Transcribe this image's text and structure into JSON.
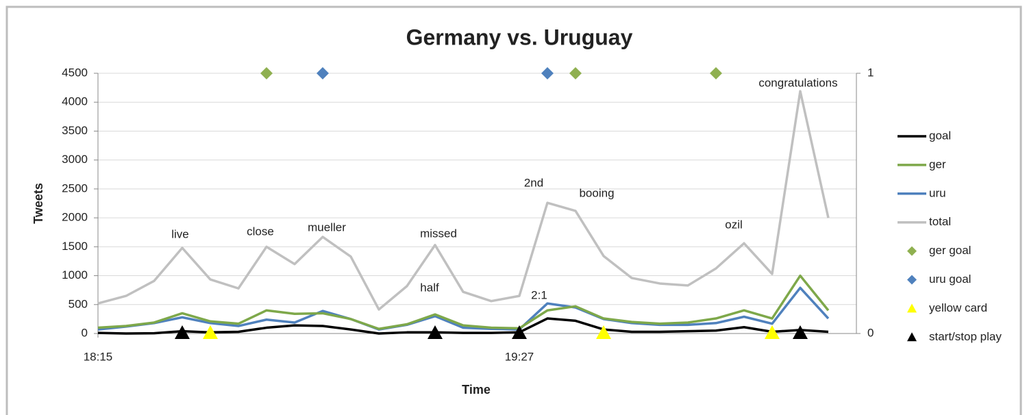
{
  "chart_data": {
    "type": "line",
    "title": "Germany vs. Uruguay",
    "x_label": "Time",
    "y_label": "Tweets",
    "categories": [
      "18:15",
      null,
      null,
      null,
      null,
      null,
      null,
      null,
      null,
      null,
      null,
      null,
      null,
      null,
      null,
      "19:27",
      null,
      null,
      null,
      null,
      null,
      null,
      null,
      null,
      null,
      null,
      null
    ],
    "ylim": [
      0,
      4500
    ],
    "yticks": [
      0,
      500,
      1000,
      1500,
      2000,
      2500,
      3000,
      3500,
      4000,
      4500
    ],
    "y2lim": [
      0,
      1
    ],
    "y2ticks": [
      0,
      1
    ],
    "grid": true,
    "legend": "right",
    "series": [
      {
        "name": "goal",
        "color": "#000000",
        "values": [
          10,
          0,
          5,
          40,
          20,
          30,
          100,
          140,
          130,
          70,
          0,
          20,
          20,
          10,
          10,
          20,
          260,
          220,
          70,
          30,
          30,
          40,
          50,
          110,
          30,
          60,
          30
        ]
      },
      {
        "name": "ger",
        "color": "#7ea84a",
        "values": [
          100,
          130,
          190,
          350,
          210,
          170,
          400,
          340,
          350,
          250,
          80,
          160,
          330,
          140,
          100,
          90,
          400,
          470,
          260,
          200,
          170,
          190,
          260,
          400,
          260,
          1000,
          400
        ]
      },
      {
        "name": "uru",
        "color": "#4f81bd",
        "values": [
          70,
          120,
          180,
          280,
          180,
          130,
          240,
          190,
          390,
          250,
          70,
          150,
          300,
          100,
          80,
          70,
          520,
          450,
          250,
          180,
          150,
          150,
          180,
          290,
          170,
          790,
          260
        ]
      },
      {
        "name": "total",
        "color": "#c0c0c0",
        "values": [
          520,
          650,
          910,
          1480,
          935,
          780,
          1500,
          1200,
          1670,
          1330,
          415,
          820,
          1530,
          720,
          560,
          650,
          2260,
          2120,
          1340,
          960,
          865,
          830,
          1125,
          1560,
          1030,
          4190,
          2000
        ]
      },
      {
        "name": "ger goal",
        "color": "#8fb050",
        "axis": "y2",
        "marker": "diamond",
        "values": [
          null,
          null,
          null,
          null,
          null,
          null,
          1,
          null,
          null,
          null,
          null,
          null,
          null,
          null,
          null,
          null,
          null,
          1,
          null,
          null,
          null,
          null,
          1,
          null,
          null,
          null,
          null
        ]
      },
      {
        "name": "uru goal",
        "color": "#4f81bd",
        "axis": "y2",
        "marker": "diamond",
        "values": [
          null,
          null,
          null,
          null,
          null,
          null,
          null,
          null,
          1,
          null,
          null,
          null,
          null,
          null,
          null,
          null,
          1,
          null,
          null,
          null,
          null,
          null,
          null,
          null,
          null,
          null,
          null
        ]
      },
      {
        "name": "yellow card",
        "color": "#ffff00",
        "axis": "y2",
        "marker": "triangle",
        "values": [
          null,
          null,
          null,
          null,
          0,
          null,
          null,
          null,
          null,
          null,
          null,
          null,
          null,
          null,
          null,
          null,
          null,
          null,
          0,
          null,
          null,
          null,
          null,
          null,
          0,
          null,
          null
        ]
      },
      {
        "name": "start/stop play",
        "color": "#000000",
        "axis": "y2",
        "marker": "triangle",
        "values": [
          null,
          null,
          null,
          0,
          null,
          null,
          null,
          null,
          null,
          null,
          null,
          null,
          0,
          null,
          null,
          0,
          null,
          null,
          null,
          null,
          null,
          null,
          null,
          null,
          null,
          0,
          null
        ]
      }
    ],
    "annotations": [
      "live",
      "close",
      "mueller",
      "missed",
      "half",
      "2nd",
      "booing",
      "2:1",
      "ozil",
      "congratulations"
    ]
  }
}
